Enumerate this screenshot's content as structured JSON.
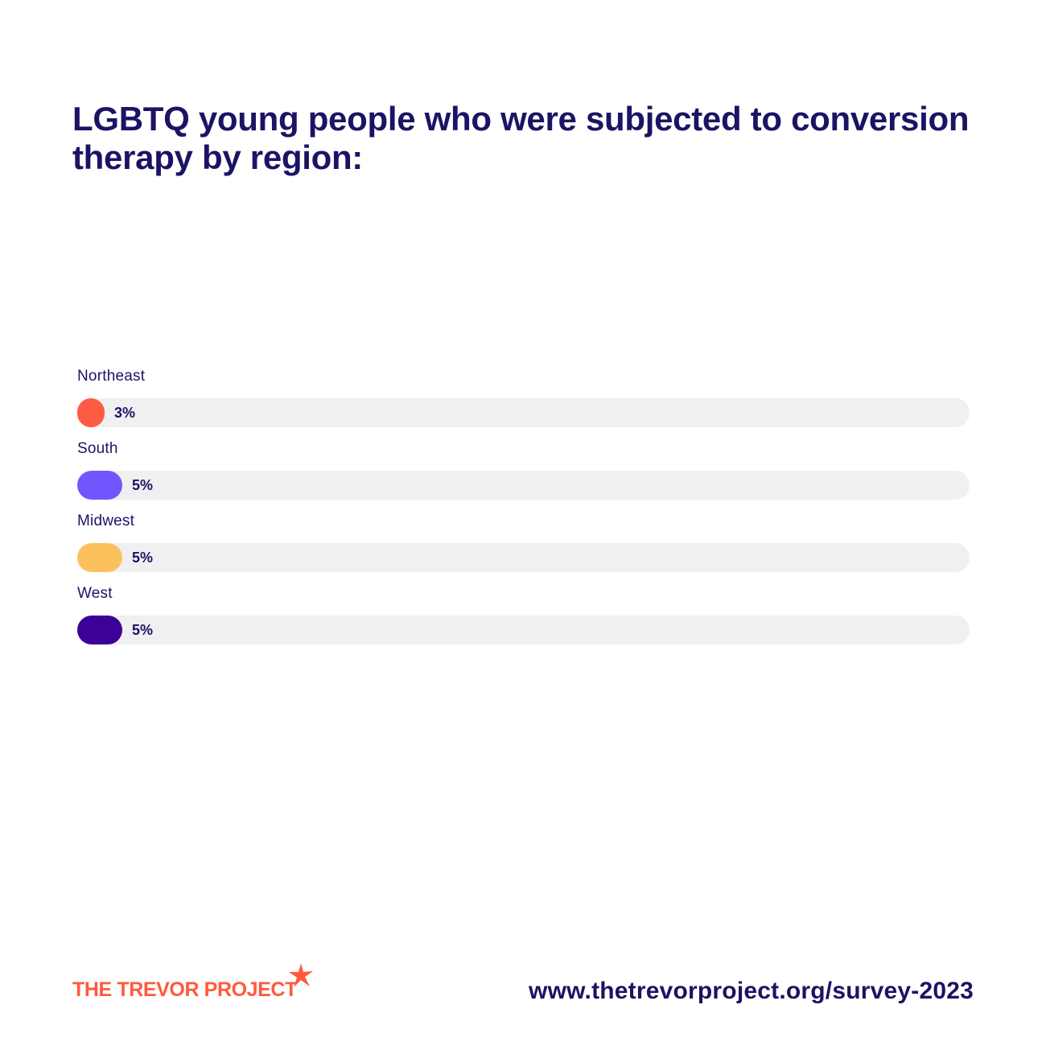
{
  "title": "LGBTQ young people who were subjected to conversion therapy by region:",
  "chart_data": {
    "type": "bar",
    "orientation": "horizontal",
    "categories": [
      "Northeast",
      "South",
      "Midwest",
      "West"
    ],
    "values": [
      3,
      5,
      5,
      5
    ],
    "value_labels": [
      "3%",
      "5%",
      "5%",
      "5%"
    ],
    "unit": "%",
    "xlim": [
      0,
      100
    ],
    "colors": [
      "#ff5a44",
      "#7355ff",
      "#fcc15d",
      "#3d0099"
    ],
    "track_color": "#f0f0f0",
    "grid": false,
    "legend": "none"
  },
  "footer": {
    "logo_text": "THE TREVOR PROJECT",
    "url": "www.thetrevorproject.org/survey-2023"
  },
  "colors": {
    "text": "#1b1464",
    "brand": "#ff5a3c"
  }
}
